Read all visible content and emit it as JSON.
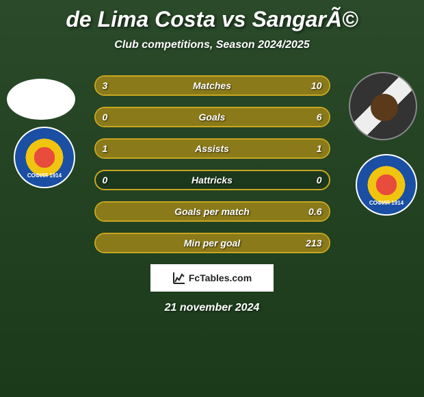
{
  "header": {
    "title": "de Lima Costa vs SangarÃ©",
    "subtitle": "Club competitions, Season 2024/2025"
  },
  "players": {
    "left": {
      "name": "de Lima Costa"
    },
    "right": {
      "name": "SangarÃ©"
    }
  },
  "stats": [
    {
      "label": "Matches",
      "left_value": "3",
      "right_value": "10",
      "left_pct": 23,
      "right_pct": 77
    },
    {
      "label": "Goals",
      "left_value": "0",
      "right_value": "6",
      "left_pct": 0,
      "right_pct": 100
    },
    {
      "label": "Assists",
      "left_value": "1",
      "right_value": "1",
      "left_pct": 50,
      "right_pct": 50
    },
    {
      "label": "Hattricks",
      "left_value": "0",
      "right_value": "0",
      "left_pct": 0,
      "right_pct": 0
    },
    {
      "label": "Goals per match",
      "left_value": "",
      "right_value": "0.6",
      "left_pct": 0,
      "right_pct": 100
    },
    {
      "label": "Min per goal",
      "left_value": "",
      "right_value": "213",
      "left_pct": 0,
      "right_pct": 100
    }
  ],
  "footer": {
    "brand": "FcTables.com",
    "date": "21 november 2024"
  },
  "colors": {
    "bar_border": "#c9a720",
    "bar_fill": "#8a7a1a",
    "bg_top": "#2a4a2a",
    "bg_bottom": "#1a3a1a",
    "text": "#ffffff"
  }
}
